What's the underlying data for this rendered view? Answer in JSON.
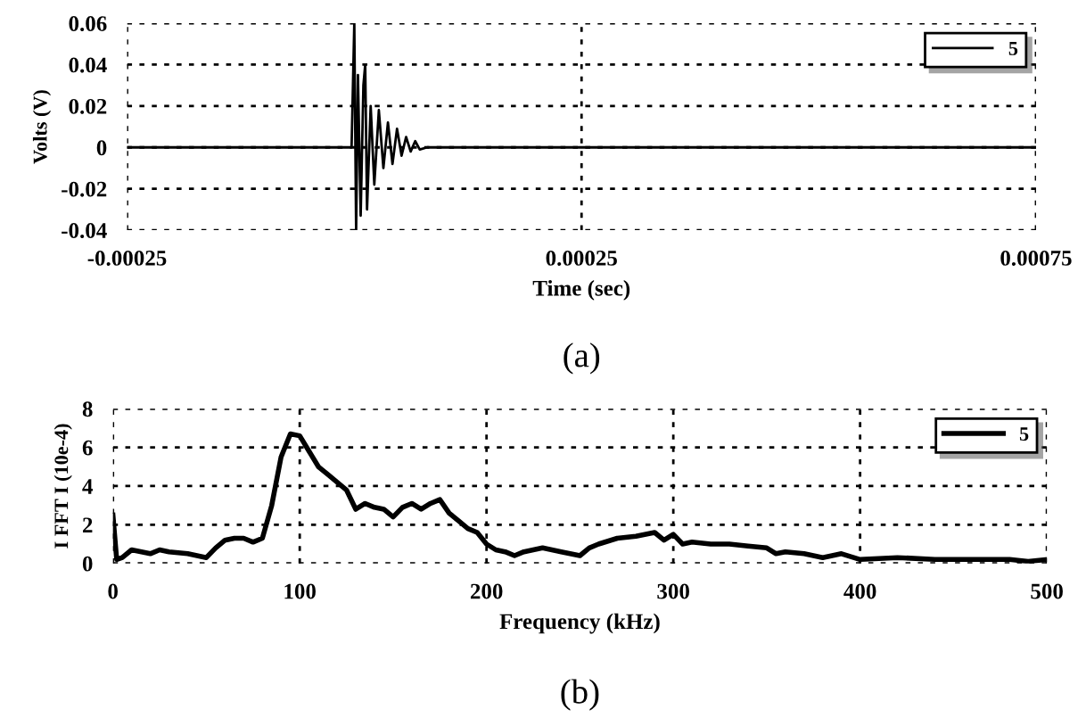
{
  "chart_data": [
    {
      "type": "line",
      "xlabel": "Time (sec)",
      "ylabel": "Volts (V)",
      "annotations": [
        "(a)"
      ],
      "xlim": [
        -0.00025,
        0.00075
      ],
      "xticks": [
        {
          "value": -0.00025,
          "label": "-0.00025"
        },
        0.00025,
        0.00075
      ],
      "ylim": [
        -0.04,
        0.06
      ],
      "yticks": [
        {
          "value": -0.04,
          "label": "-0.04"
        },
        {
          "value": -0.02,
          "label": "-0.02"
        },
        0,
        0.02,
        0.04,
        0.06
      ],
      "grid": true,
      "legend": "top right",
      "line_style": "solid",
      "series": [
        {
          "name": "5",
          "color": "#000000",
          "x": [
            -0.00025,
            -0.0002,
            -0.00015,
            -0.0001,
            -5e-05,
            -3e-06,
            0,
            2e-06,
            4e-06,
            7e-06,
            1e-05,
            1.2e-05,
            1.4e-05,
            1.8e-05,
            2.2e-05,
            2.7e-05,
            3.2e-05,
            3.7e-05,
            4.2e-05,
            4.7e-05,
            5.2e-05,
            5.7e-05,
            6.2e-05,
            6.7e-05,
            7.2e-05,
            8e-05,
            0.0001,
            0.0002,
            0.0003,
            0.0004,
            0.0005,
            0.0006,
            0.0007,
            0.00075
          ],
          "values": [
            0,
            0,
            0,
            0,
            0,
            0,
            0.06,
            -0.04,
            0.035,
            -0.033,
            0.03,
            0.04,
            -0.03,
            0.02,
            -0.018,
            0.018,
            -0.01,
            0.012,
            -0.008,
            0.009,
            -0.004,
            0.005,
            -0.002,
            0.003,
            -0.001,
            0,
            0,
            0,
            0,
            0,
            0,
            0,
            0,
            0
          ]
        }
      ]
    },
    {
      "type": "line",
      "xlabel": "Frequency (kHz)",
      "ylabel": "I FFT I (10e-4)",
      "annotations": [
        "(b)"
      ],
      "xlim": [
        0,
        500
      ],
      "xticks": [
        0,
        100,
        200,
        300,
        400,
        500
      ],
      "ylim": [
        0,
        8
      ],
      "yticks": [
        0,
        2,
        4,
        6,
        8
      ],
      "grid": true,
      "legend": "top right",
      "line_style": "solid",
      "series": [
        {
          "name": "5",
          "color": "#000000",
          "x": [
            0,
            2,
            5,
            10,
            20,
            25,
            30,
            40,
            50,
            55,
            60,
            65,
            70,
            75,
            80,
            85,
            90,
            95,
            100,
            105,
            110,
            115,
            120,
            125,
            130,
            135,
            140,
            145,
            150,
            155,
            160,
            165,
            170,
            175,
            180,
            185,
            190,
            195,
            200,
            205,
            210,
            215,
            220,
            230,
            240,
            250,
            255,
            260,
            270,
            280,
            290,
            295,
            300,
            305,
            310,
            320,
            330,
            340,
            350,
            355,
            360,
            370,
            380,
            390,
            400,
            420,
            440,
            460,
            480,
            490,
            500
          ],
          "values": [
            2.5,
            0.2,
            0.3,
            0.7,
            0.5,
            0.7,
            0.6,
            0.5,
            0.3,
            0.8,
            1.2,
            1.3,
            1.3,
            1.1,
            1.3,
            3,
            5.5,
            6.7,
            6.6,
            5.8,
            5.0,
            4.6,
            4.2,
            3.8,
            2.8,
            3.1,
            2.9,
            2.8,
            2.4,
            2.9,
            3.1,
            2.8,
            3.1,
            3.3,
            2.6,
            2.2,
            1.8,
            1.6,
            1.0,
            0.7,
            0.6,
            0.4,
            0.6,
            0.8,
            0.6,
            0.4,
            0.8,
            1.0,
            1.3,
            1.4,
            1.6,
            1.2,
            1.5,
            1.0,
            1.1,
            1.0,
            1.0,
            0.9,
            0.8,
            0.5,
            0.6,
            0.5,
            0.3,
            0.5,
            0.2,
            0.3,
            0.2,
            0.2,
            0.2,
            0.1,
            0.2
          ]
        }
      ]
    }
  ]
}
